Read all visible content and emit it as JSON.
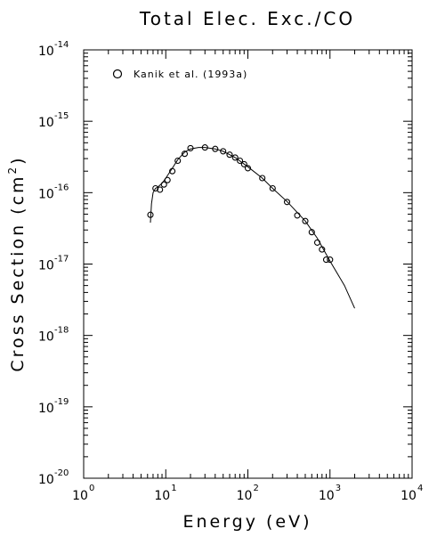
{
  "chart_data": {
    "type": "scatter",
    "title": "Total Elec. Exc./CO",
    "xlabel": "Energy (eV)",
    "ylabel": "Cross Section (cm",
    "ylabel_sup": "2",
    "ylabel_close": ")",
    "x_scale": "log",
    "y_scale": "log",
    "xlim": [
      1,
      10000
    ],
    "ylim": [
      1e-20,
      1e-14
    ],
    "x_ticks": [
      {
        "base": "10",
        "exp": "0",
        "value": 1
      },
      {
        "base": "10",
        "exp": "1",
        "value": 10
      },
      {
        "base": "10",
        "exp": "2",
        "value": 100
      },
      {
        "base": "10",
        "exp": "3",
        "value": 1000
      },
      {
        "base": "10",
        "exp": "4",
        "value": 10000
      }
    ],
    "y_ticks": [
      {
        "base": "10",
        "exp": "-14",
        "value": 1e-14
      },
      {
        "base": "10",
        "exp": "-15",
        "value": 1e-15
      },
      {
        "base": "10",
        "exp": "-16",
        "value": 1e-16
      },
      {
        "base": "10",
        "exp": "-17",
        "value": 1e-17
      },
      {
        "base": "10",
        "exp": "-18",
        "value": 1e-18
      },
      {
        "base": "10",
        "exp": "-19",
        "value": 1e-19
      },
      {
        "base": "10",
        "exp": "-20",
        "value": 1e-20
      }
    ],
    "grid": false,
    "legend_position": "top-left",
    "series": [
      {
        "name": "Kanik et al. (1993a)",
        "marker": "circle",
        "x": [
          6.5,
          7.5,
          8.5,
          9.5,
          10.5,
          12,
          14,
          17,
          20,
          30,
          40,
          50,
          60,
          70,
          80,
          90,
          100,
          150,
          200,
          300,
          400,
          500,
          600,
          700,
          800,
          900,
          1000
        ],
        "y": [
          4.9e-17,
          1.15e-16,
          1.1e-16,
          1.3e-16,
          1.5e-16,
          2e-16,
          2.8e-16,
          3.5e-16,
          4.2e-16,
          4.3e-16,
          4.1e-16,
          3.8e-16,
          3.4e-16,
          3.1e-16,
          2.8e-16,
          2.5e-16,
          2.2e-16,
          1.6e-16,
          1.15e-16,
          7.4e-17,
          4.8e-17,
          4e-17,
          2.8e-17,
          2e-17,
          1.6e-17,
          1.15e-17,
          1.15e-17
        ]
      },
      {
        "type": "line",
        "x": [
          6.5,
          6.7,
          7.0,
          7.5,
          8.0,
          9.0,
          10,
          12,
          14,
          17,
          20,
          25,
          30,
          40,
          50,
          70,
          100,
          150,
          200,
          300,
          500,
          700,
          1000,
          1500,
          2000
        ],
        "y": [
          3.8e-17,
          7e-17,
          1e-16,
          1.15e-16,
          1.2e-16,
          1.35e-16,
          1.6e-16,
          2.2e-16,
          2.9e-16,
          3.7e-16,
          4.1e-16,
          4.3e-16,
          4.3e-16,
          4.1e-16,
          3.8e-16,
          3.1e-16,
          2.3e-16,
          1.6e-16,
          1.15e-16,
          7.5e-17,
          4e-17,
          2.3e-17,
          1.1e-17,
          5e-18,
          2.4e-18
        ]
      }
    ]
  }
}
